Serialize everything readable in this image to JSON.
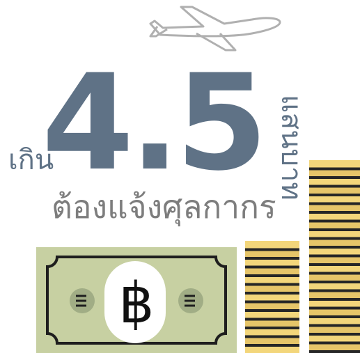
{
  "headline": {
    "prefix": "เกิน",
    "amount": "4.5",
    "unit": "แสนบาท",
    "caption": "ต้องแจ้งศุลกากร"
  },
  "banknote": {
    "symbol": "฿"
  },
  "icons": [
    "airplane-icon",
    "banknote-icon",
    "coin-stack-icon"
  ],
  "colors": {
    "headline": "#5f7286",
    "caption": "#7d7d7d",
    "banknote": "#c7d0a2",
    "coin_face": "#f3d67b",
    "coin_stripe": "#262626",
    "plane_outline": "#b0b0b0"
  }
}
